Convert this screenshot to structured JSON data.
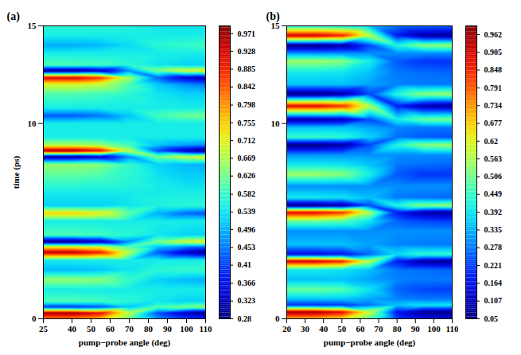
{
  "chart_data": [
    {
      "type": "heatmap",
      "title": "(a)",
      "x_label": "pump−probe angle (deg)",
      "y_label": "time (ps)",
      "xlim": [
        25,
        110
      ],
      "xticks": [
        25,
        40,
        50,
        60,
        70,
        80,
        90,
        100,
        110
      ],
      "ylim": [
        0,
        15
      ],
      "yticks": [
        0,
        10,
        15
      ],
      "x": [
        25,
        40,
        55,
        70,
        85,
        100,
        110
      ],
      "y": [
        0,
        0.3,
        0.6,
        0.9,
        1.5,
        2,
        2.5,
        3,
        3.4,
        3.7,
        3.95,
        4.3,
        5,
        5.4,
        5.8,
        6.5,
        7.2,
        7.9,
        8.3,
        8.6,
        8.9,
        9.3,
        10,
        10.4,
        10.8,
        11.5,
        12,
        12.35,
        12.7,
        13,
        13.6,
        14,
        14.5,
        15
      ],
      "values": [
        [
          0.8,
          0.8,
          0.76,
          0.63,
          0.48,
          0.41,
          0.39
        ],
        [
          0.97,
          0.97,
          0.91,
          0.68,
          0.42,
          0.32,
          0.28
        ],
        [
          0.4,
          0.4,
          0.42,
          0.51,
          0.6,
          0.63,
          0.65
        ],
        [
          0.6,
          0.6,
          0.59,
          0.57,
          0.54,
          0.52,
          0.52
        ],
        [
          0.55,
          0.55,
          0.55,
          0.55,
          0.55,
          0.55,
          0.55
        ],
        [
          0.65,
          0.65,
          0.64,
          0.58,
          0.52,
          0.5,
          0.49
        ],
        [
          0.5,
          0.5,
          0.51,
          0.54,
          0.57,
          0.58,
          0.58
        ],
        [
          0.55,
          0.55,
          0.55,
          0.55,
          0.55,
          0.55,
          0.55
        ],
        [
          0.95,
          0.95,
          0.89,
          0.67,
          0.43,
          0.33,
          0.29
        ],
        [
          0.7,
          0.7,
          0.68,
          0.6,
          0.51,
          0.47,
          0.45
        ],
        [
          0.28,
          0.28,
          0.32,
          0.47,
          0.63,
          0.7,
          0.72
        ],
        [
          0.6,
          0.6,
          0.59,
          0.57,
          0.54,
          0.52,
          0.52
        ],
        [
          0.55,
          0.55,
          0.55,
          0.55,
          0.55,
          0.55,
          0.55
        ],
        [
          0.75,
          0.75,
          0.72,
          0.61,
          0.49,
          0.44,
          0.42
        ],
        [
          0.52,
          0.52,
          0.52,
          0.54,
          0.56,
          0.57,
          0.57
        ],
        [
          0.55,
          0.55,
          0.55,
          0.55,
          0.55,
          0.55,
          0.55
        ],
        [
          0.6,
          0.6,
          0.59,
          0.57,
          0.54,
          0.52,
          0.52
        ],
        [
          0.65,
          0.65,
          0.64,
          0.58,
          0.52,
          0.5,
          0.49
        ],
        [
          0.29,
          0.29,
          0.33,
          0.47,
          0.63,
          0.69,
          0.72
        ],
        [
          0.97,
          0.97,
          0.91,
          0.68,
          0.42,
          0.32,
          0.28
        ],
        [
          0.67,
          0.67,
          0.65,
          0.59,
          0.51,
          0.48,
          0.47
        ],
        [
          0.55,
          0.55,
          0.55,
          0.55,
          0.55,
          0.55,
          0.55
        ],
        [
          0.55,
          0.55,
          0.55,
          0.55,
          0.55,
          0.55,
          0.55
        ],
        [
          0.43,
          0.43,
          0.45,
          0.51,
          0.59,
          0.62,
          0.63
        ],
        [
          0.55,
          0.55,
          0.55,
          0.55,
          0.55,
          0.55,
          0.55
        ],
        [
          0.6,
          0.6,
          0.59,
          0.57,
          0.54,
          0.52,
          0.52
        ],
        [
          0.7,
          0.7,
          0.68,
          0.6,
          0.51,
          0.47,
          0.45
        ],
        [
          0.93,
          0.93,
          0.87,
          0.66,
          0.44,
          0.34,
          0.31
        ],
        [
          0.28,
          0.28,
          0.32,
          0.47,
          0.63,
          0.7,
          0.72
        ],
        [
          0.6,
          0.6,
          0.59,
          0.57,
          0.54,
          0.52,
          0.52
        ],
        [
          0.55,
          0.55,
          0.55,
          0.55,
          0.55,
          0.55,
          0.55
        ],
        [
          0.49,
          0.49,
          0.5,
          0.53,
          0.57,
          0.58,
          0.59
        ],
        [
          0.55,
          0.55,
          0.55,
          0.55,
          0.55,
          0.55,
          0.55
        ],
        [
          0.57,
          0.57,
          0.57,
          0.56,
          0.54,
          0.54,
          0.54
        ]
      ],
      "colorbar": {
        "range": [
          0.28,
          0.99
        ],
        "ticks": [
          0.28,
          0.323,
          0.366,
          0.41,
          0.453,
          0.496,
          0.539,
          0.582,
          0.626,
          0.669,
          0.712,
          0.755,
          0.798,
          0.842,
          0.885,
          0.928,
          0.971
        ]
      }
    },
    {
      "type": "heatmap",
      "title": "(b)",
      "x_label": "pump−probe angle (deg)",
      "xlim": [
        20,
        110
      ],
      "xticks": [
        20,
        30,
        40,
        50,
        60,
        70,
        80,
        90,
        100,
        110
      ],
      "ylim": [
        0,
        15
      ],
      "yticks": [
        0,
        10,
        15
      ],
      "x": [
        20,
        35,
        50,
        65,
        80,
        95,
        110
      ],
      "y": [
        0,
        0.35,
        0.7,
        1,
        1.5,
        2,
        2.5,
        2.95,
        3.3,
        3.8,
        4.5,
        5,
        5.45,
        5.8,
        6.2,
        6.8,
        7.4,
        7.9,
        8.4,
        8.9,
        9.3,
        9.8,
        10.2,
        10.9,
        11.5,
        12,
        12.6,
        13.2,
        13.6,
        14,
        14.5,
        15
      ],
      "values": [
        [
          0.7,
          0.7,
          0.66,
          0.48,
          0.22,
          0.16,
          0.15
        ],
        [
          0.96,
          0.96,
          0.89,
          0.6,
          0.17,
          0.07,
          0.05
        ],
        [
          0.2,
          0.2,
          0.21,
          0.27,
          0.35,
          0.39,
          0.4
        ],
        [
          0.35,
          0.35,
          0.35,
          0.32,
          0.29,
          0.28,
          0.28
        ],
        [
          0.5,
          0.5,
          0.48,
          0.39,
          0.26,
          0.23,
          0.22
        ],
        [
          0.35,
          0.35,
          0.35,
          0.32,
          0.29,
          0.28,
          0.28
        ],
        [
          0.4,
          0.4,
          0.39,
          0.35,
          0.28,
          0.27,
          0.26
        ],
        [
          0.92,
          0.92,
          0.86,
          0.58,
          0.18,
          0.08,
          0.06
        ],
        [
          0.15,
          0.15,
          0.17,
          0.26,
          0.38,
          0.44,
          0.45
        ],
        [
          0.35,
          0.35,
          0.35,
          0.32,
          0.29,
          0.28,
          0.28
        ],
        [
          0.3,
          0.3,
          0.3,
          0.3,
          0.3,
          0.3,
          0.3
        ],
        [
          0.5,
          0.5,
          0.48,
          0.39,
          0.26,
          0.23,
          0.22
        ],
        [
          0.9,
          0.9,
          0.84,
          0.57,
          0.18,
          0.09,
          0.07
        ],
        [
          0.05,
          0.05,
          0.08,
          0.23,
          0.43,
          0.53,
          0.55
        ],
        [
          0.4,
          0.4,
          0.39,
          0.35,
          0.28,
          0.27,
          0.26
        ],
        [
          0.3,
          0.3,
          0.3,
          0.3,
          0.3,
          0.3,
          0.3
        ],
        [
          0.55,
          0.55,
          0.53,
          0.41,
          0.25,
          0.21,
          0.21
        ],
        [
          0.4,
          0.4,
          0.39,
          0.35,
          0.28,
          0.27,
          0.26
        ],
        [
          0.3,
          0.3,
          0.3,
          0.3,
          0.3,
          0.3,
          0.3
        ],
        [
          0.05,
          0.05,
          0.08,
          0.23,
          0.43,
          0.53,
          0.55
        ],
        [
          0.45,
          0.45,
          0.44,
          0.37,
          0.27,
          0.25,
          0.24
        ],
        [
          0.35,
          0.35,
          0.35,
          0.32,
          0.29,
          0.28,
          0.28
        ],
        [
          0.08,
          0.08,
          0.1,
          0.23,
          0.41,
          0.5,
          0.52
        ],
        [
          0.9,
          0.9,
          0.84,
          0.57,
          0.18,
          0.09,
          0.07
        ],
        [
          0.05,
          0.05,
          0.08,
          0.23,
          0.43,
          0.53,
          0.55
        ],
        [
          0.35,
          0.35,
          0.35,
          0.32,
          0.29,
          0.28,
          0.28
        ],
        [
          0.4,
          0.4,
          0.39,
          0.35,
          0.28,
          0.27,
          0.26
        ],
        [
          0.55,
          0.55,
          0.53,
          0.41,
          0.25,
          0.21,
          0.21
        ],
        [
          0.3,
          0.3,
          0.3,
          0.3,
          0.3,
          0.3,
          0.3
        ],
        [
          0.05,
          0.05,
          0.08,
          0.23,
          0.43,
          0.53,
          0.55
        ],
        [
          0.92,
          0.92,
          0.86,
          0.58,
          0.18,
          0.08,
          0.06
        ],
        [
          0.4,
          0.4,
          0.39,
          0.35,
          0.28,
          0.27,
          0.26
        ]
      ],
      "colorbar": {
        "range": [
          0.05,
          0.99
        ],
        "ticks": [
          0.05,
          0.107,
          0.164,
          0.221,
          0.278,
          0.335,
          0.392,
          0.449,
          0.506,
          0.563,
          0.62,
          0.677,
          0.734,
          0.791,
          0.848,
          0.905,
          0.962
        ]
      }
    }
  ]
}
